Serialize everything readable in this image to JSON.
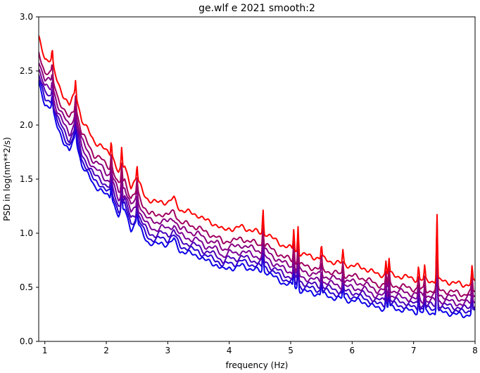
{
  "chart_data": {
    "type": "line",
    "title": "ge.wlf e 2021 smooth:2",
    "xlabel": "frequency (Hz)",
    "ylabel": "PSD in log(nm**2/s)",
    "xlim": [
      0.9,
      8
    ],
    "ylim": [
      0,
      3.0
    ],
    "xticks": [
      1,
      2,
      3,
      4,
      5,
      6,
      7,
      8
    ],
    "xtick_labels": [
      "1",
      "2",
      "3",
      "4",
      "5",
      "6",
      "7",
      "8"
    ],
    "yticks": [
      0.0,
      0.5,
      1.0,
      1.5,
      2.0,
      2.5,
      3.0
    ],
    "ytick_labels": [
      "0.0",
      "0.5",
      "1.0",
      "1.5",
      "2.0",
      "2.5",
      "3.0"
    ],
    "grid": false,
    "legend": "none",
    "base_curve": {
      "x": [
        0.9,
        1.0,
        1.1,
        1.2,
        1.3,
        1.4,
        1.5,
        1.6,
        1.7,
        1.8,
        1.9,
        2.0,
        2.1,
        2.2,
        2.3,
        2.4,
        2.5,
        2.6,
        2.7,
        2.8,
        2.9,
        3.0,
        3.1,
        3.2,
        3.3,
        3.4,
        3.5,
        3.6,
        3.7,
        3.8,
        3.9,
        4.0,
        4.1,
        4.2,
        4.3,
        4.4,
        4.5,
        4.6,
        4.7,
        4.8,
        4.9,
        5.0,
        5.2,
        5.4,
        5.6,
        5.8,
        6.0,
        6.2,
        6.4,
        6.6,
        6.8,
        7.0,
        7.2,
        7.4,
        7.6,
        7.8,
        8.0
      ],
      "y": [
        2.8,
        2.62,
        2.6,
        2.4,
        2.28,
        2.18,
        2.3,
        2.05,
        1.95,
        1.85,
        1.82,
        1.75,
        1.72,
        1.56,
        1.62,
        1.44,
        1.5,
        1.38,
        1.3,
        1.28,
        1.3,
        1.28,
        1.32,
        1.22,
        1.2,
        1.18,
        1.17,
        1.12,
        1.1,
        1.08,
        1.02,
        1.05,
        1.04,
        1.06,
        1.04,
        1.02,
        1.0,
        1.0,
        0.95,
        0.92,
        0.88,
        0.86,
        0.8,
        0.78,
        0.75,
        0.72,
        0.7,
        0.68,
        0.62,
        0.62,
        0.6,
        0.58,
        0.56,
        0.56,
        0.55,
        0.52,
        0.55
      ]
    },
    "peaks": [
      {
        "x": 1.12,
        "height": 0.12
      },
      {
        "x": 1.5,
        "height": 0.12
      },
      {
        "x": 2.08,
        "height": 0.14
      },
      {
        "x": 2.25,
        "height": 0.18
      },
      {
        "x": 2.5,
        "height": 0.12
      },
      {
        "x": 4.55,
        "height": 0.22
      },
      {
        "x": 5.05,
        "height": 0.2
      },
      {
        "x": 5.12,
        "height": 0.25
      },
      {
        "x": 5.5,
        "height": 0.12
      },
      {
        "x": 5.85,
        "height": 0.12
      },
      {
        "x": 6.55,
        "height": 0.12
      },
      {
        "x": 6.6,
        "height": 0.14
      },
      {
        "x": 7.08,
        "height": 0.12
      },
      {
        "x": 7.18,
        "height": 0.12
      },
      {
        "x": 7.38,
        "height": 0.62
      },
      {
        "x": 7.95,
        "height": 0.14
      }
    ],
    "series": [
      {
        "offset": 0.0,
        "color": "#ff0000"
      },
      {
        "offset": -0.13,
        "color": "#a00060"
      },
      {
        "offset": -0.2,
        "color": "#880080"
      },
      {
        "offset": -0.27,
        "color": "#7a0098"
      },
      {
        "offset": -0.33,
        "color": "#4a00b8"
      },
      {
        "offset": -0.38,
        "color": "#2a00d0"
      },
      {
        "offset": -0.43,
        "color": "#0a00e8"
      }
    ]
  }
}
